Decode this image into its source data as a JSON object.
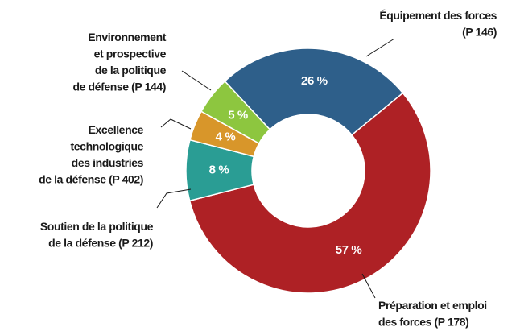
{
  "chart_data": {
    "type": "donut",
    "categories": [
      "Équipement des forces\n(P 146)",
      "Préparation et emploi\ndes forces (P 178)",
      "Soutien de la politique\nde la défense (P 212)",
      "Excellence\ntechnologique\ndes industries\nde la défense (P 402)",
      "Environnement\net prospective\nde la politique\nde défense (P 144)"
    ],
    "values": [
      26,
      57,
      8,
      4,
      5
    ],
    "value_labels": [
      "26 %",
      "57 %",
      "8 %",
      "4 %",
      "5 %"
    ],
    "colors": [
      "#2e5f8a",
      "#ae2125",
      "#2a9d94",
      "#d8962a",
      "#8dc63f"
    ]
  }
}
